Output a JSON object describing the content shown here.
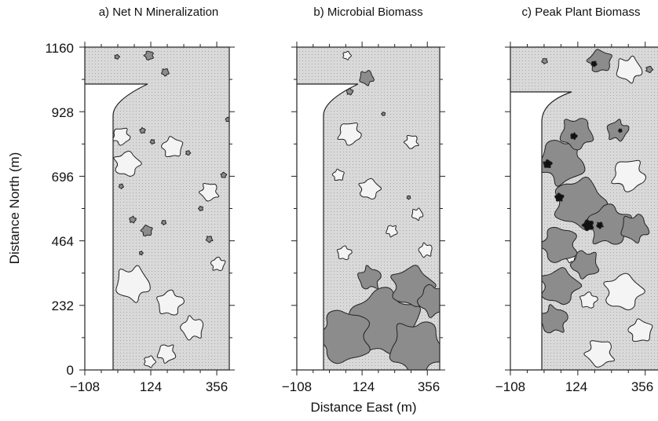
{
  "chart_data": [
    {
      "type": "heatmap",
      "title": "a) Net N Mineralization",
      "xlabel": "",
      "ylabel": "Distance North (m)",
      "xlim": [
        -108,
        400
      ],
      "ylim": [
        0,
        1160
      ],
      "x_ticks": [
        "−108",
        "124",
        "356"
      ],
      "y_ticks": [
        "0",
        "232",
        "464",
        "696",
        "928",
        "1160"
      ],
      "patches": [
        {
          "level": "dark",
          "x": 118,
          "y": 1130,
          "r": 20
        },
        {
          "level": "dark",
          "x": 175,
          "y": 1070,
          "r": 16
        },
        {
          "level": "dark",
          "x": 5,
          "y": 1125,
          "r": 10
        },
        {
          "level": "dark",
          "x": 95,
          "y": 860,
          "r": 12
        },
        {
          "level": "dark",
          "x": 130,
          "y": 820,
          "r": 10
        },
        {
          "level": "dark",
          "x": 20,
          "y": 660,
          "r": 10
        },
        {
          "level": "dark",
          "x": 60,
          "y": 540,
          "r": 14
        },
        {
          "level": "dark",
          "x": 110,
          "y": 500,
          "r": 24
        },
        {
          "level": "dark",
          "x": 170,
          "y": 530,
          "r": 10
        },
        {
          "level": "dark",
          "x": 255,
          "y": 780,
          "r": 10
        },
        {
          "level": "dark",
          "x": 380,
          "y": 700,
          "r": 12
        },
        {
          "level": "dark",
          "x": 300,
          "y": 580,
          "r": 10
        },
        {
          "level": "dark",
          "x": 330,
          "y": 470,
          "r": 14
        },
        {
          "level": "dark",
          "x": 90,
          "y": 420,
          "r": 8
        },
        {
          "level": "dark",
          "x": 395,
          "y": 900,
          "r": 10
        },
        {
          "level": "light",
          "x": 20,
          "y": 840,
          "r": 38
        },
        {
          "level": "light",
          "x": 40,
          "y": 740,
          "r": 55
        },
        {
          "level": "light",
          "x": 200,
          "y": 800,
          "r": 45
        },
        {
          "level": "light",
          "x": 330,
          "y": 640,
          "r": 40
        },
        {
          "level": "light",
          "x": 60,
          "y": 310,
          "r": 75
        },
        {
          "level": "light",
          "x": 190,
          "y": 240,
          "r": 55
        },
        {
          "level": "light",
          "x": 270,
          "y": 150,
          "r": 50
        },
        {
          "level": "light",
          "x": 180,
          "y": 60,
          "r": 40
        },
        {
          "level": "light",
          "x": 120,
          "y": 30,
          "r": 25
        },
        {
          "level": "light",
          "x": 360,
          "y": 380,
          "r": 30
        }
      ]
    },
    {
      "type": "heatmap",
      "title": "b) Microbial Biomass",
      "xlabel": "Distance East (m)",
      "ylabel": "",
      "xlim": [
        -108,
        400
      ],
      "ylim": [
        0,
        1160
      ],
      "x_ticks": [
        "−108",
        "124",
        "356"
      ],
      "y_ticks": [],
      "patches": [
        {
          "level": "dark",
          "x": 200,
          "y": 170,
          "r": 150
        },
        {
          "level": "dark",
          "x": 60,
          "y": 120,
          "r": 120
        },
        {
          "level": "dark",
          "x": 320,
          "y": 80,
          "r": 120
        },
        {
          "level": "dark",
          "x": 300,
          "y": 300,
          "r": 90
        },
        {
          "level": "dark",
          "x": 150,
          "y": 330,
          "r": 50
        },
        {
          "level": "dark",
          "x": 380,
          "y": 250,
          "r": 70
        },
        {
          "level": "dark",
          "x": 140,
          "y": 1050,
          "r": 32
        },
        {
          "level": "dark",
          "x": 80,
          "y": 1000,
          "r": 14
        },
        {
          "level": "dark",
          "x": 200,
          "y": 920,
          "r": 8
        },
        {
          "level": "dark",
          "x": 290,
          "y": 620,
          "r": 8
        },
        {
          "level": "light",
          "x": 80,
          "y": 850,
          "r": 50
        },
        {
          "level": "light",
          "x": 150,
          "y": 650,
          "r": 45
        },
        {
          "level": "light",
          "x": 40,
          "y": 700,
          "r": 25
        },
        {
          "level": "light",
          "x": 300,
          "y": 820,
          "r": 30
        },
        {
          "level": "light",
          "x": 320,
          "y": 560,
          "r": 25
        },
        {
          "level": "light",
          "x": 60,
          "y": 420,
          "r": 30
        },
        {
          "level": "light",
          "x": 350,
          "y": 430,
          "r": 30
        },
        {
          "level": "light",
          "x": 230,
          "y": 500,
          "r": 25
        },
        {
          "level": "light",
          "x": 70,
          "y": 1130,
          "r": 18
        }
      ]
    },
    {
      "type": "heatmap",
      "title": "c) Peak Plant Biomass",
      "xlabel": "",
      "ylabel": "",
      "xlim": [
        -108,
        400
      ],
      "ylim": [
        0,
        1160
      ],
      "x_ticks": [
        "−108",
        "124",
        "356"
      ],
      "y_ticks": [],
      "patches": [
        {
          "level": "dark",
          "x": 70,
          "y": 750,
          "r": 100
        },
        {
          "level": "dark",
          "x": 130,
          "y": 600,
          "r": 110
        },
        {
          "level": "dark",
          "x": 230,
          "y": 520,
          "r": 90
        },
        {
          "level": "dark",
          "x": 60,
          "y": 450,
          "r": 80
        },
        {
          "level": "dark",
          "x": 120,
          "y": 850,
          "r": 70
        },
        {
          "level": "dark",
          "x": 60,
          "y": 300,
          "r": 80
        },
        {
          "level": "dark",
          "x": 40,
          "y": 180,
          "r": 60
        },
        {
          "level": "dark",
          "x": 150,
          "y": 380,
          "r": 60
        },
        {
          "level": "dark",
          "x": 320,
          "y": 510,
          "r": 60
        },
        {
          "level": "dark",
          "x": 260,
          "y": 860,
          "r": 45
        },
        {
          "level": "dark",
          "x": 200,
          "y": 1110,
          "r": 50
        },
        {
          "level": "dark",
          "x": 10,
          "y": 1110,
          "r": 12
        },
        {
          "level": "dark",
          "x": 370,
          "y": 1080,
          "r": 14
        },
        {
          "level": "black",
          "x": 20,
          "y": 740,
          "r": 18
        },
        {
          "level": "black",
          "x": 160,
          "y": 520,
          "r": 24
        },
        {
          "level": "black",
          "x": 200,
          "y": 520,
          "r": 14
        },
        {
          "level": "black",
          "x": 110,
          "y": 840,
          "r": 14
        },
        {
          "level": "black",
          "x": 60,
          "y": 620,
          "r": 18
        },
        {
          "level": "black",
          "x": 270,
          "y": 860,
          "r": 8
        },
        {
          "level": "black",
          "x": 180,
          "y": 1100,
          "r": 12
        },
        {
          "level": "light",
          "x": 300,
          "y": 700,
          "r": 70
        },
        {
          "level": "light",
          "x": 280,
          "y": 280,
          "r": 80
        },
        {
          "level": "light",
          "x": 340,
          "y": 140,
          "r": 50
        },
        {
          "level": "light",
          "x": 200,
          "y": 60,
          "r": 60
        },
        {
          "level": "light",
          "x": 300,
          "y": 1080,
          "r": 55
        },
        {
          "level": "light",
          "x": 160,
          "y": 250,
          "r": 35
        },
        {
          "level": "light",
          "x": 100,
          "y": 400,
          "r": 18
        }
      ]
    }
  ],
  "colors": {
    "background": "#ffffff",
    "medium": "#d9d9d9",
    "light": "#f4f4f4",
    "dark": "#8c8c8c",
    "black": "#111111",
    "line": "#222222"
  }
}
